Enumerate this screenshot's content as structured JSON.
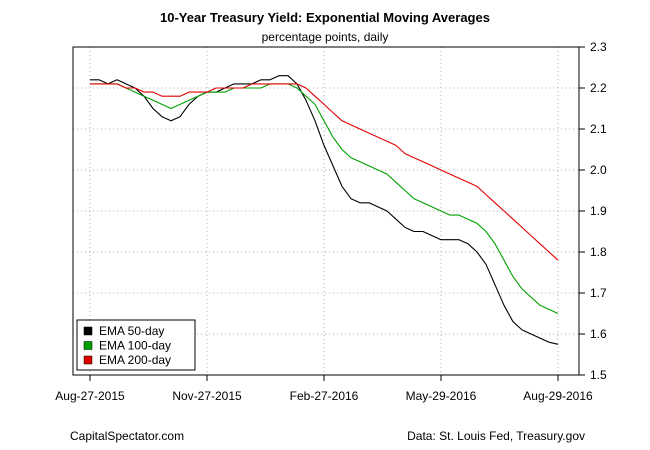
{
  "chart_data": {
    "type": "line",
    "title": "10-Year Treasury Yield: Exponential Moving Averages",
    "subtitle": "percentage points, daily",
    "xlabel": "",
    "ylabel": "",
    "x_ticks": [
      "Aug-27-2015",
      "Nov-27-2015",
      "Feb-27-2016",
      "May-29-2016",
      "Aug-29-2016"
    ],
    "y_ticks": [
      "1.5",
      "1.6",
      "1.7",
      "1.8",
      "1.9",
      "2.0",
      "2.1",
      "2.2",
      "2.3"
    ],
    "ylim": [
      1.5,
      2.3
    ],
    "x_index_range": [
      0,
      48
    ],
    "grid": true,
    "legend_position": "bottom-left",
    "series": [
      {
        "name": "EMA 50-day",
        "color": "#000000",
        "values": [
          2.22,
          2.22,
          2.21,
          2.22,
          2.21,
          2.2,
          2.18,
          2.15,
          2.13,
          2.12,
          2.13,
          2.16,
          2.18,
          2.19,
          2.19,
          2.2,
          2.21,
          2.21,
          2.21,
          2.22,
          2.22,
          2.23,
          2.23,
          2.21,
          2.17,
          2.12,
          2.06,
          2.01,
          1.96,
          1.93,
          1.92,
          1.92,
          1.91,
          1.9,
          1.88,
          1.86,
          1.85,
          1.85,
          1.84,
          1.83,
          1.83,
          1.83,
          1.82,
          1.8,
          1.77,
          1.72,
          1.67,
          1.63,
          1.61,
          1.6,
          1.59,
          1.58,
          1.575
        ]
      },
      {
        "name": "EMA 100-day",
        "color": "#00a000",
        "values": [
          2.21,
          2.21,
          2.21,
          2.21,
          2.2,
          2.19,
          2.18,
          2.17,
          2.16,
          2.15,
          2.16,
          2.17,
          2.18,
          2.19,
          2.19,
          2.19,
          2.2,
          2.2,
          2.2,
          2.2,
          2.21,
          2.21,
          2.21,
          2.2,
          2.18,
          2.16,
          2.12,
          2.08,
          2.05,
          2.03,
          2.02,
          2.01,
          2.0,
          1.99,
          1.97,
          1.95,
          1.93,
          1.92,
          1.91,
          1.9,
          1.89,
          1.89,
          1.88,
          1.87,
          1.85,
          1.82,
          1.78,
          1.74,
          1.71,
          1.69,
          1.67,
          1.66,
          1.65
        ]
      },
      {
        "name": "EMA 200-day",
        "color": "#e00000",
        "values": [
          2.21,
          2.21,
          2.21,
          2.21,
          2.2,
          2.2,
          2.19,
          2.19,
          2.18,
          2.18,
          2.18,
          2.19,
          2.19,
          2.19,
          2.2,
          2.2,
          2.2,
          2.2,
          2.21,
          2.21,
          2.21,
          2.21,
          2.21,
          2.21,
          2.2,
          2.18,
          2.16,
          2.14,
          2.12,
          2.11,
          2.1,
          2.09,
          2.08,
          2.07,
          2.06,
          2.04,
          2.03,
          2.02,
          2.01,
          2.0,
          1.99,
          1.98,
          1.97,
          1.96,
          1.94,
          1.92,
          1.9,
          1.88,
          1.86,
          1.84,
          1.82,
          1.8,
          1.78
        ]
      }
    ]
  },
  "footer": {
    "source_left": "CapitalSpectator.com",
    "source_right": "Data: St. Louis Fed, Treasury.gov"
  }
}
